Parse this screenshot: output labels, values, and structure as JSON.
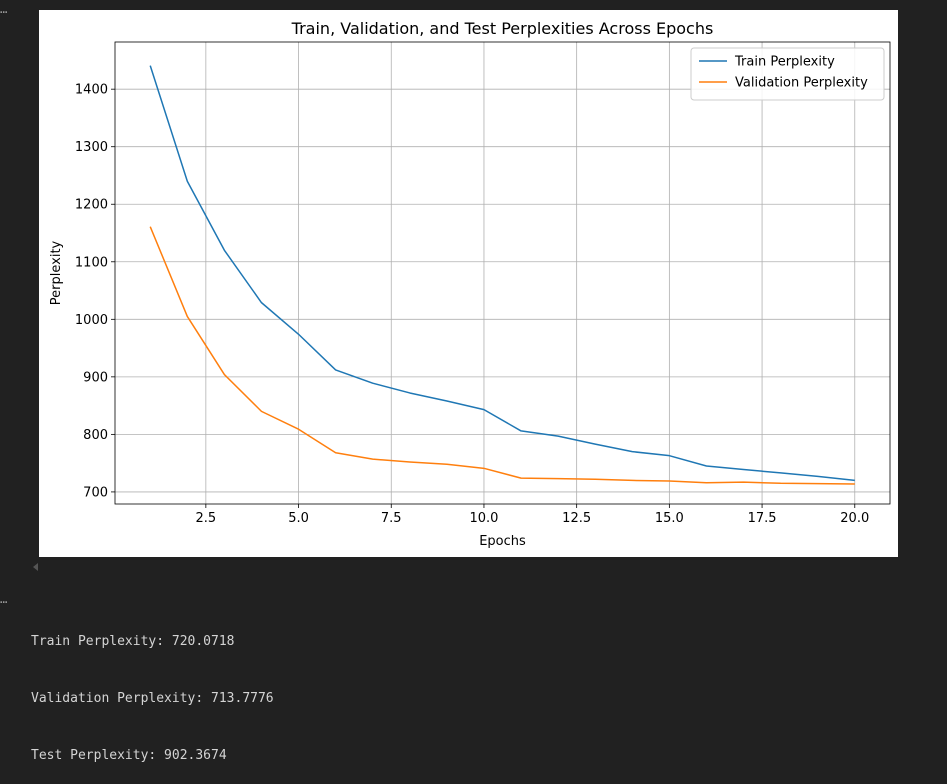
{
  "cell": {
    "marker_top": "⋯",
    "marker_bottom": "⋯"
  },
  "chart_data": {
    "type": "line",
    "title": "Train, Validation, and Test Perplexities Across Epochs",
    "xlabel": "Epochs",
    "ylabel": "Perplexity",
    "xlim": [
      0.05,
      20.95
    ],
    "ylim": [
      679,
      1482
    ],
    "xticks": [
      2.5,
      5.0,
      7.5,
      10.0,
      12.5,
      15.0,
      17.5,
      20.0
    ],
    "xtick_labels": [
      "2.5",
      "5.0",
      "7.5",
      "10.0",
      "12.5",
      "15.0",
      "17.5",
      "20.0"
    ],
    "yticks": [
      700,
      800,
      900,
      1000,
      1100,
      1200,
      1300,
      1400
    ],
    "ytick_labels": [
      "700",
      "800",
      "900",
      "1000",
      "1100",
      "1200",
      "1300",
      "1400"
    ],
    "grid": true,
    "legend_position": "top-right",
    "x": [
      1,
      2,
      3,
      4,
      5,
      6,
      7,
      8,
      9,
      10,
      11,
      12,
      13,
      14,
      15,
      16,
      17,
      18,
      19,
      20
    ],
    "series": [
      {
        "name": "Train Perplexity",
        "color": "#1f77b4",
        "values": [
          1441,
          1240,
          1120,
          1029,
          974,
          912,
          889,
          872,
          858,
          843,
          806,
          797,
          783,
          770,
          763,
          745,
          739,
          733,
          727,
          720.0718
        ]
      },
      {
        "name": "Validation Perplexity",
        "color": "#ff7f0e",
        "values": [
          1161,
          1005,
          904,
          840,
          809,
          768,
          757,
          752,
          748,
          741,
          724,
          723,
          722,
          720,
          719,
          716,
          717,
          715,
          714.5,
          713.7776
        ]
      }
    ]
  },
  "output": {
    "lines": [
      "Train Perplexity: 720.0718",
      "Validation Perplexity: 713.7776",
      "Test Perplexity: 902.3674"
    ]
  }
}
